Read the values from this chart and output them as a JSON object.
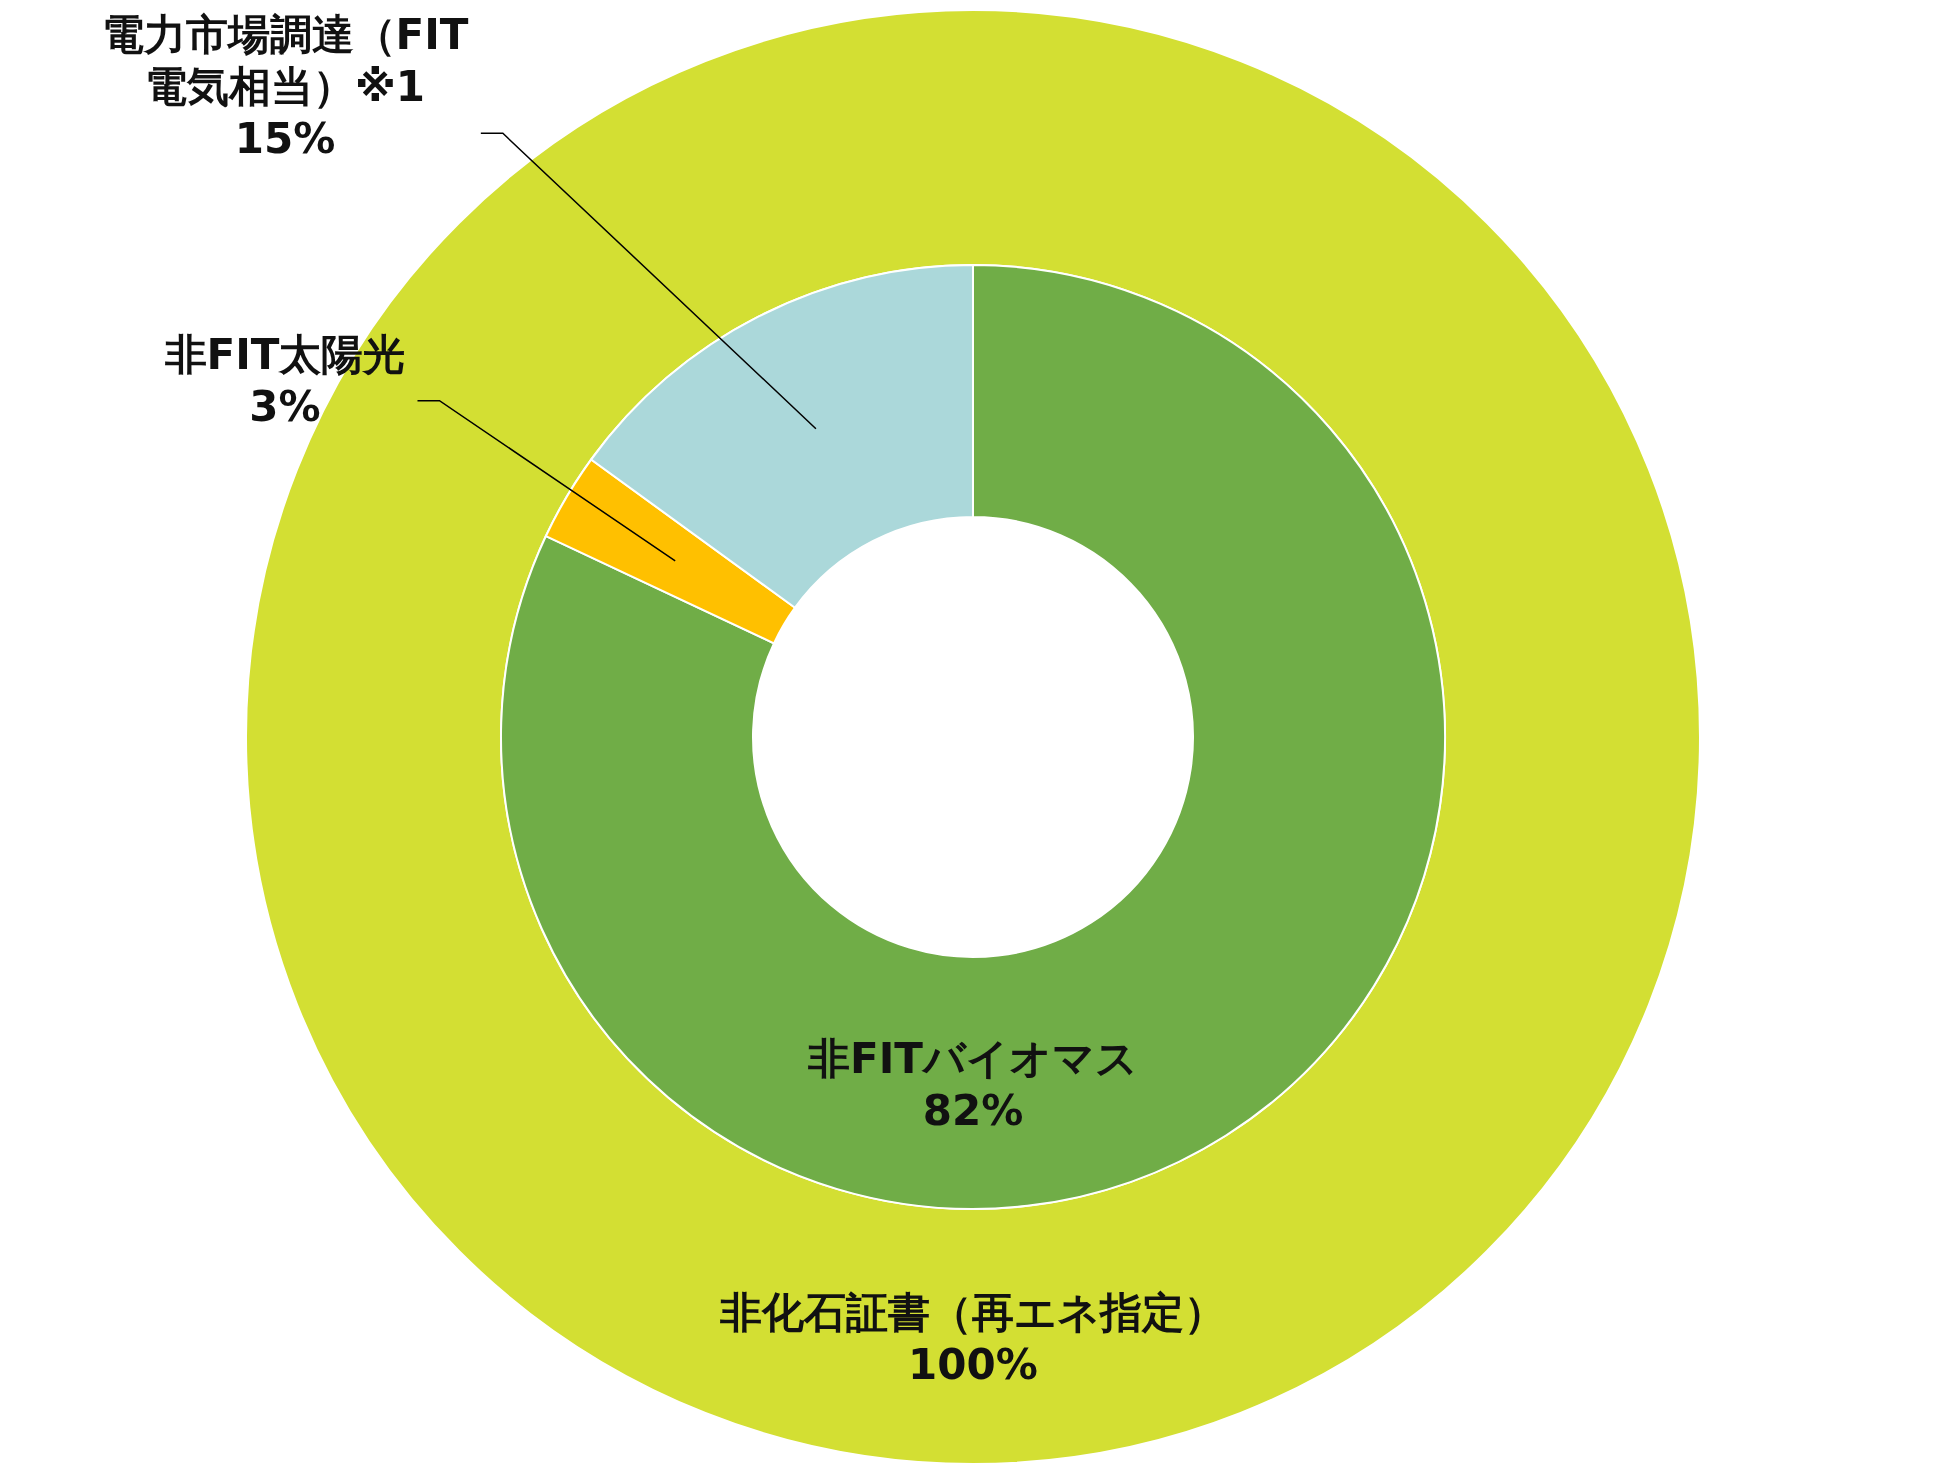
{
  "chart_data": [
    {
      "type": "pie",
      "categories": [
        "非化石証書（再エネ指定）"
      ],
      "values": [
        100
      ],
      "colors": [
        "#d3df33"
      ],
      "value_labels": [
        "100%"
      ]
    },
    {
      "type": "donut",
      "categories": [
        "非FITバイオマス",
        "非FIT太陽光",
        "電力市場調達（FIT電気相当）※1"
      ],
      "values": [
        82,
        3,
        15
      ],
      "colors": [
        "#70ad47",
        "#ffc000",
        "#abd8da"
      ],
      "value_labels": [
        "82%",
        "3%",
        "15%"
      ]
    }
  ]
}
